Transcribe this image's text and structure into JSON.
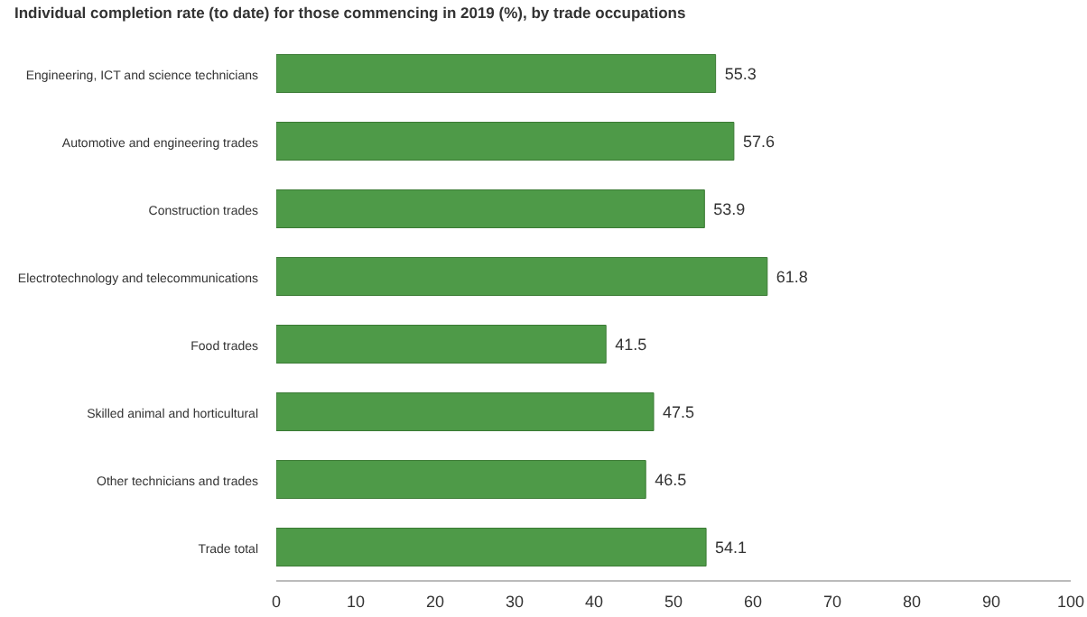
{
  "chart_data": {
    "type": "bar",
    "orientation": "horizontal",
    "title": "Individual completion rate (to date) for those commencing in 2019 (%), by trade occupations",
    "categories": [
      "Engineering, ICT and science technicians",
      "Automotive and engineering trades",
      "Construction trades",
      "Electrotechnology and telecommunications",
      "Food trades",
      "Skilled animal and horticultural",
      "Other technicians and trades",
      "Trade total"
    ],
    "values": [
      55.3,
      57.6,
      53.9,
      61.8,
      41.5,
      47.5,
      46.5,
      54.1
    ],
    "color": "#4e9a48",
    "xlim": [
      0,
      100
    ],
    "xticks": [
      0,
      10,
      20,
      30,
      40,
      50,
      60,
      70,
      80,
      90,
      100
    ],
    "data_labels": true,
    "grid": false
  }
}
